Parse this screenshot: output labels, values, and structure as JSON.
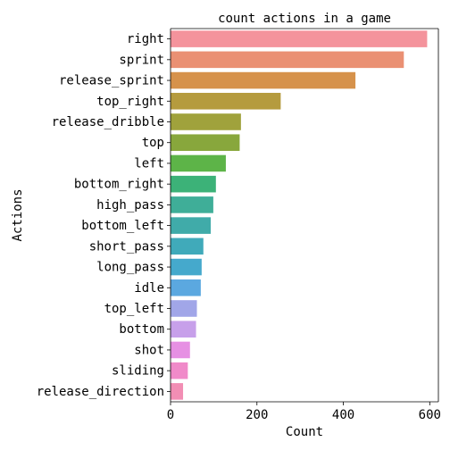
{
  "chart_data": {
    "type": "bar",
    "orientation": "horizontal",
    "title": "count actions in a game",
    "xlabel": "Count",
    "ylabel": "Actions",
    "xlim": [
      0,
      620
    ],
    "xticks": [
      0,
      200,
      400,
      600
    ],
    "grid": false,
    "legend": "none",
    "categories": [
      "right",
      "sprint",
      "release_sprint",
      "top_right",
      "release_dribble",
      "top",
      "left",
      "bottom_right",
      "high_pass",
      "bottom_left",
      "short_pass",
      "long_pass",
      "idle",
      "top_left",
      "bottom",
      "shot",
      "sliding",
      "release_direction"
    ],
    "values": [
      594,
      540,
      428,
      255,
      163,
      160,
      128,
      105,
      99,
      93,
      76,
      72,
      70,
      61,
      59,
      45,
      40,
      29
    ],
    "colors": [
      "#f4939c",
      "#ea9073",
      "#d6924b",
      "#b59b3e",
      "#a0a23c",
      "#88a73c",
      "#5db448",
      "#3cb278",
      "#3fae98",
      "#40aba9",
      "#40aaba",
      "#45a9cc",
      "#5ba8e0",
      "#a1a6e8",
      "#c7a0ea",
      "#e690e3",
      "#f08ac9",
      "#f28eb4"
    ]
  }
}
